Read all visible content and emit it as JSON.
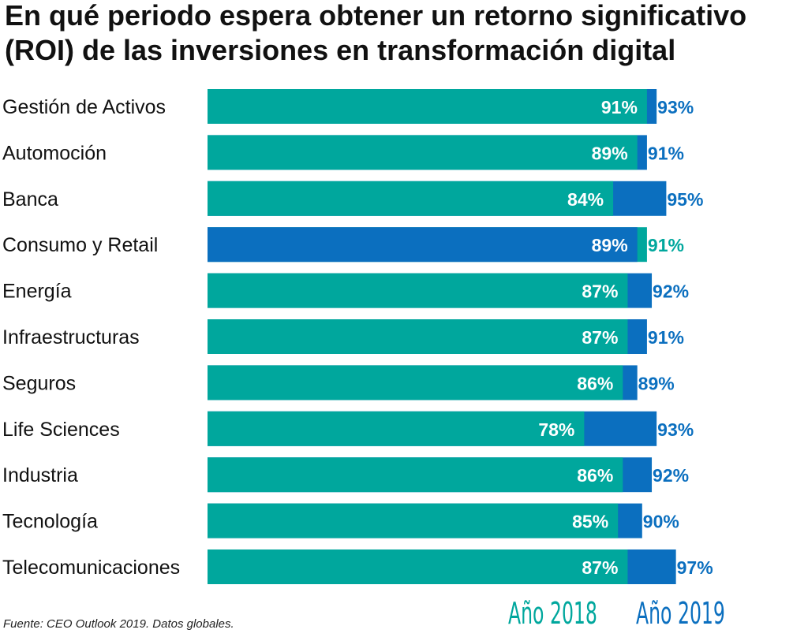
{
  "title_lines": [
    "En qué periodo espera obtener un retorno significativo",
    "(ROI) de las inversiones en transformación digital"
  ],
  "footer": "Fuente: CEO Outlook 2019. Datos globales.",
  "colors": {
    "teal": "#00a79d",
    "blue": "#0b6fbf",
    "label_text": "#111111",
    "bar_label": "#ffffff"
  },
  "chart_data": {
    "type": "bar",
    "orientation": "horizontal",
    "title": "En qué periodo espera obtener un retorno significativo (ROI) de las inversiones en transformación digital",
    "categories": [
      "Gestión de Activos",
      "Automoción",
      "Banca",
      "Consumo y Retail",
      "Energía",
      "Infraestructuras",
      "Seguros",
      "Life Sciences",
      "Industria",
      "Tecnología",
      "Telecomunicaciones"
    ],
    "series": [
      {
        "name": "Año 2018",
        "color": "#00a79d",
        "values": [
          91,
          89,
          84,
          91,
          87,
          87,
          86,
          78,
          86,
          85,
          87
        ]
      },
      {
        "name": "Año 2019",
        "color": "#0b6fbf",
        "values": [
          93,
          91,
          95,
          89,
          92,
          91,
          89,
          93,
          92,
          90,
          97
        ]
      }
    ],
    "value_suffix": "%",
    "legend_position": "bottom-right",
    "grid": false
  }
}
